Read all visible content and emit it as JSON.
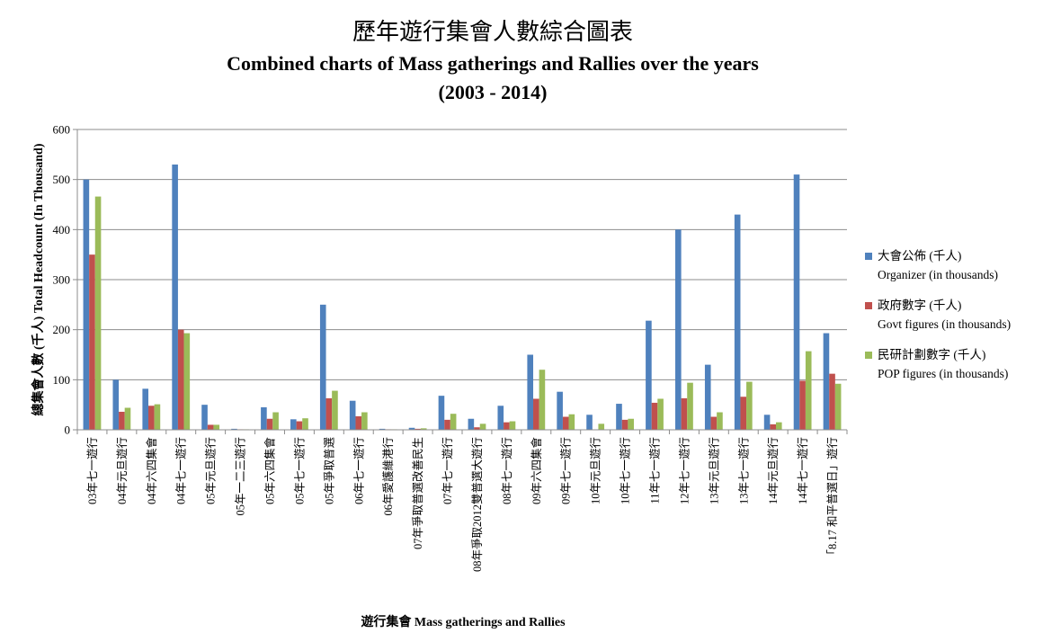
{
  "chart_data": {
    "type": "bar",
    "title_zh": "歷年遊行集會人數綜合圖表",
    "title_en": "Combined charts of Mass gatherings and Rallies over the years",
    "title_years": "(2003 - 2014)",
    "ylabel": "總集會人數 (千人) Total Headcount (In Thousand)",
    "xlabel": "遊行集會 Mass gatherings and Rallies",
    "ylim": [
      0,
      600
    ],
    "yticks": [
      0,
      100,
      200,
      300,
      400,
      500,
      600
    ],
    "ytick_labels": [
      "0",
      "100",
      "200",
      "300",
      "400",
      "500",
      "600"
    ],
    "grid": true,
    "legend_position": "right",
    "categories": [
      "03年七一遊行",
      "04年元旦遊行",
      "04年六四集會",
      "04年七一遊行",
      "05年元旦遊行",
      "05年一二三遊行",
      "05年六四集會",
      "05年七一遊行",
      "05年爭取普選",
      "06年七一遊行",
      "06年愛護維港行",
      "07年爭取普選改善民生",
      "07年七一遊行",
      "08年爭取2012雙普選大遊行",
      "08年七一遊行",
      "09年六四集會",
      "09年七一遊行",
      "10年元旦遊行",
      "10年七一遊行",
      "11年七一遊行",
      "12年七一遊行",
      "13年元旦遊行",
      "13年七一遊行",
      "14年元旦遊行",
      "14年七一遊行",
      "「8.17 和平普選日」遊行"
    ],
    "series": [
      {
        "name": "大會公佈 (千人)",
        "name_en": "Organizer  (in  thousands)",
        "color": "#4f81bd",
        "values": [
          500,
          100,
          82,
          530,
          50,
          2,
          45,
          21,
          250,
          58,
          2,
          4,
          68,
          22,
          48,
          150,
          76,
          30,
          52,
          218,
          400,
          130,
          430,
          30,
          510,
          193
        ]
      },
      {
        "name": "政府數字 (千人)",
        "name_en": "Govt figures  (in  thousands)",
        "color": "#c0504d",
        "values": [
          350,
          36,
          48,
          200,
          10,
          1,
          22,
          17,
          63,
          27,
          1,
          2,
          20,
          5,
          15,
          62,
          26,
          0,
          20,
          54,
          63,
          26,
          66,
          11,
          98,
          112
        ]
      },
      {
        "name": "民研計劃數字 (千人)",
        "name_en": "POP figures  (in  thousands)",
        "color": "#9bbb59",
        "values": [
          466,
          44,
          51,
          193,
          10,
          1,
          35,
          23,
          78,
          35,
          1,
          3,
          32,
          12,
          17,
          120,
          31,
          12,
          22,
          62,
          94,
          35,
          96,
          15,
          157,
          92
        ]
      }
    ]
  }
}
